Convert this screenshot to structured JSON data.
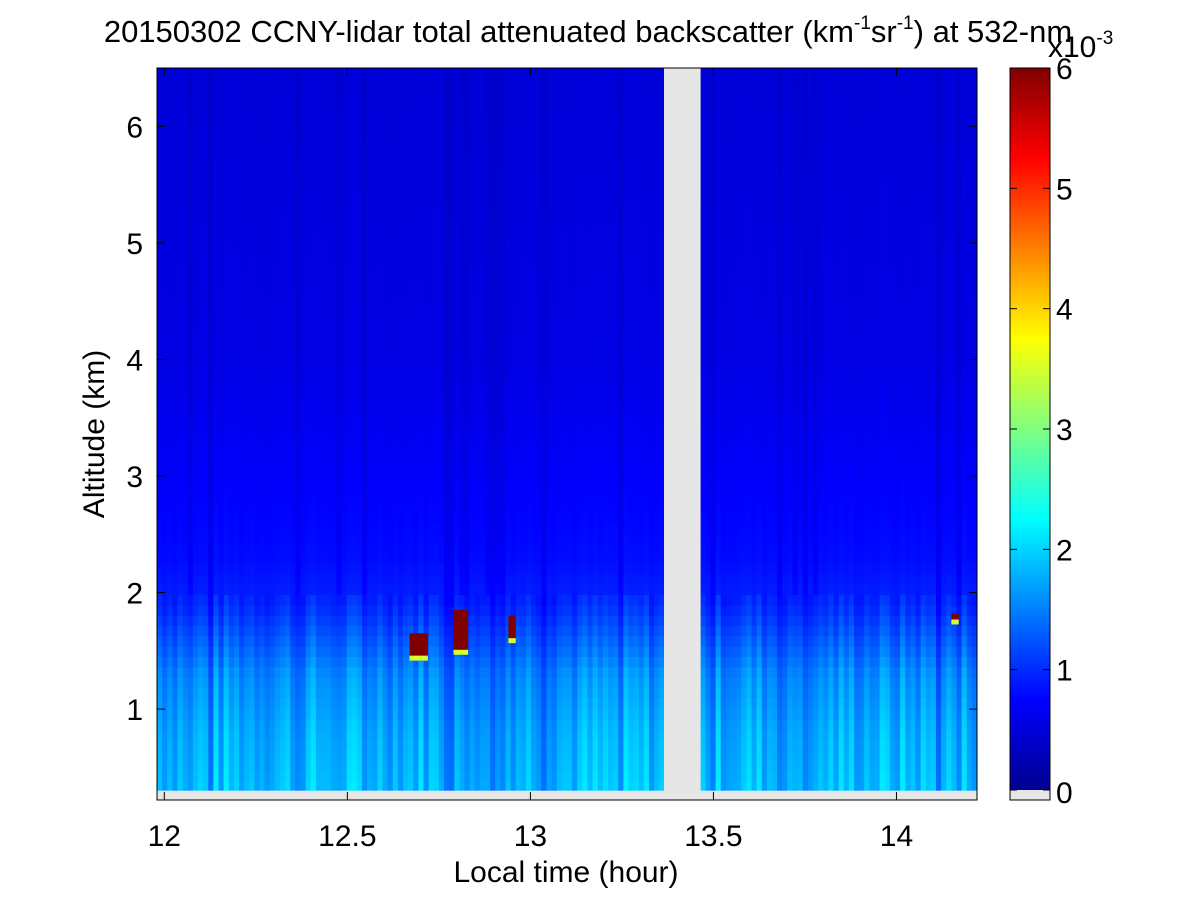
{
  "chart_data": {
    "type": "heatmap",
    "title_parts": {
      "prefix": "20150302 CCNY-lidar total attenuated backscatter (km",
      "exp1": "-1",
      "mid": "sr",
      "exp2": "-1",
      "suffix": ") at 532-nm"
    },
    "xlabel": "Local time (hour)",
    "ylabel": "Altitude (km)",
    "xlim": [
      11.98,
      14.22
    ],
    "ylim": [
      0.22,
      6.5
    ],
    "xticks": [
      12,
      12.5,
      13,
      13.5,
      14
    ],
    "xtick_labels": [
      "12",
      "12.5",
      "13",
      "13.5",
      "14"
    ],
    "yticks": [
      1,
      2,
      3,
      4,
      5,
      6
    ],
    "ytick_labels": [
      "1",
      "2",
      "3",
      "4",
      "5",
      "6"
    ],
    "grid": false,
    "colormap": "jet",
    "colorbar": {
      "min": 0,
      "max": 6,
      "ticks": [
        0,
        1,
        2,
        3,
        4,
        5,
        6
      ],
      "tick_labels": [
        "0",
        "1",
        "2",
        "3",
        "4",
        "5",
        "6"
      ],
      "scale_base": "x10",
      "scale_exp": "-3",
      "nodata_color": "#e6e6e6"
    },
    "data_gap": {
      "x_start": 13.365,
      "x_end": 13.465,
      "color": "#e6e6e6"
    },
    "profile": [
      {
        "altitude": 0.3,
        "value": 1.9
      },
      {
        "altitude": 0.8,
        "value": 1.8
      },
      {
        "altitude": 1.3,
        "value": 1.6
      },
      {
        "altitude": 1.6,
        "value": 1.3
      },
      {
        "altitude": 1.9,
        "value": 1.0
      },
      {
        "altitude": 2.3,
        "value": 0.85
      },
      {
        "altitude": 3.0,
        "value": 0.75
      },
      {
        "altitude": 4.0,
        "value": 0.62
      },
      {
        "altitude": 6.5,
        "value": 0.55
      }
    ],
    "aerosol_layer_top_km": 1.5,
    "cloud_patches": [
      {
        "x_start": 12.67,
        "x_end": 12.72,
        "z_start": 1.45,
        "z_end": 1.65,
        "value": 6
      },
      {
        "x_start": 12.79,
        "x_end": 12.83,
        "z_start": 1.5,
        "z_end": 1.85,
        "value": 6
      },
      {
        "x_start": 12.94,
        "x_end": 12.96,
        "z_start": 1.6,
        "z_end": 1.8,
        "value": 6
      },
      {
        "x_start": 14.15,
        "x_end": 14.17,
        "z_start": 1.76,
        "z_end": 1.82,
        "value": 6
      }
    ]
  }
}
